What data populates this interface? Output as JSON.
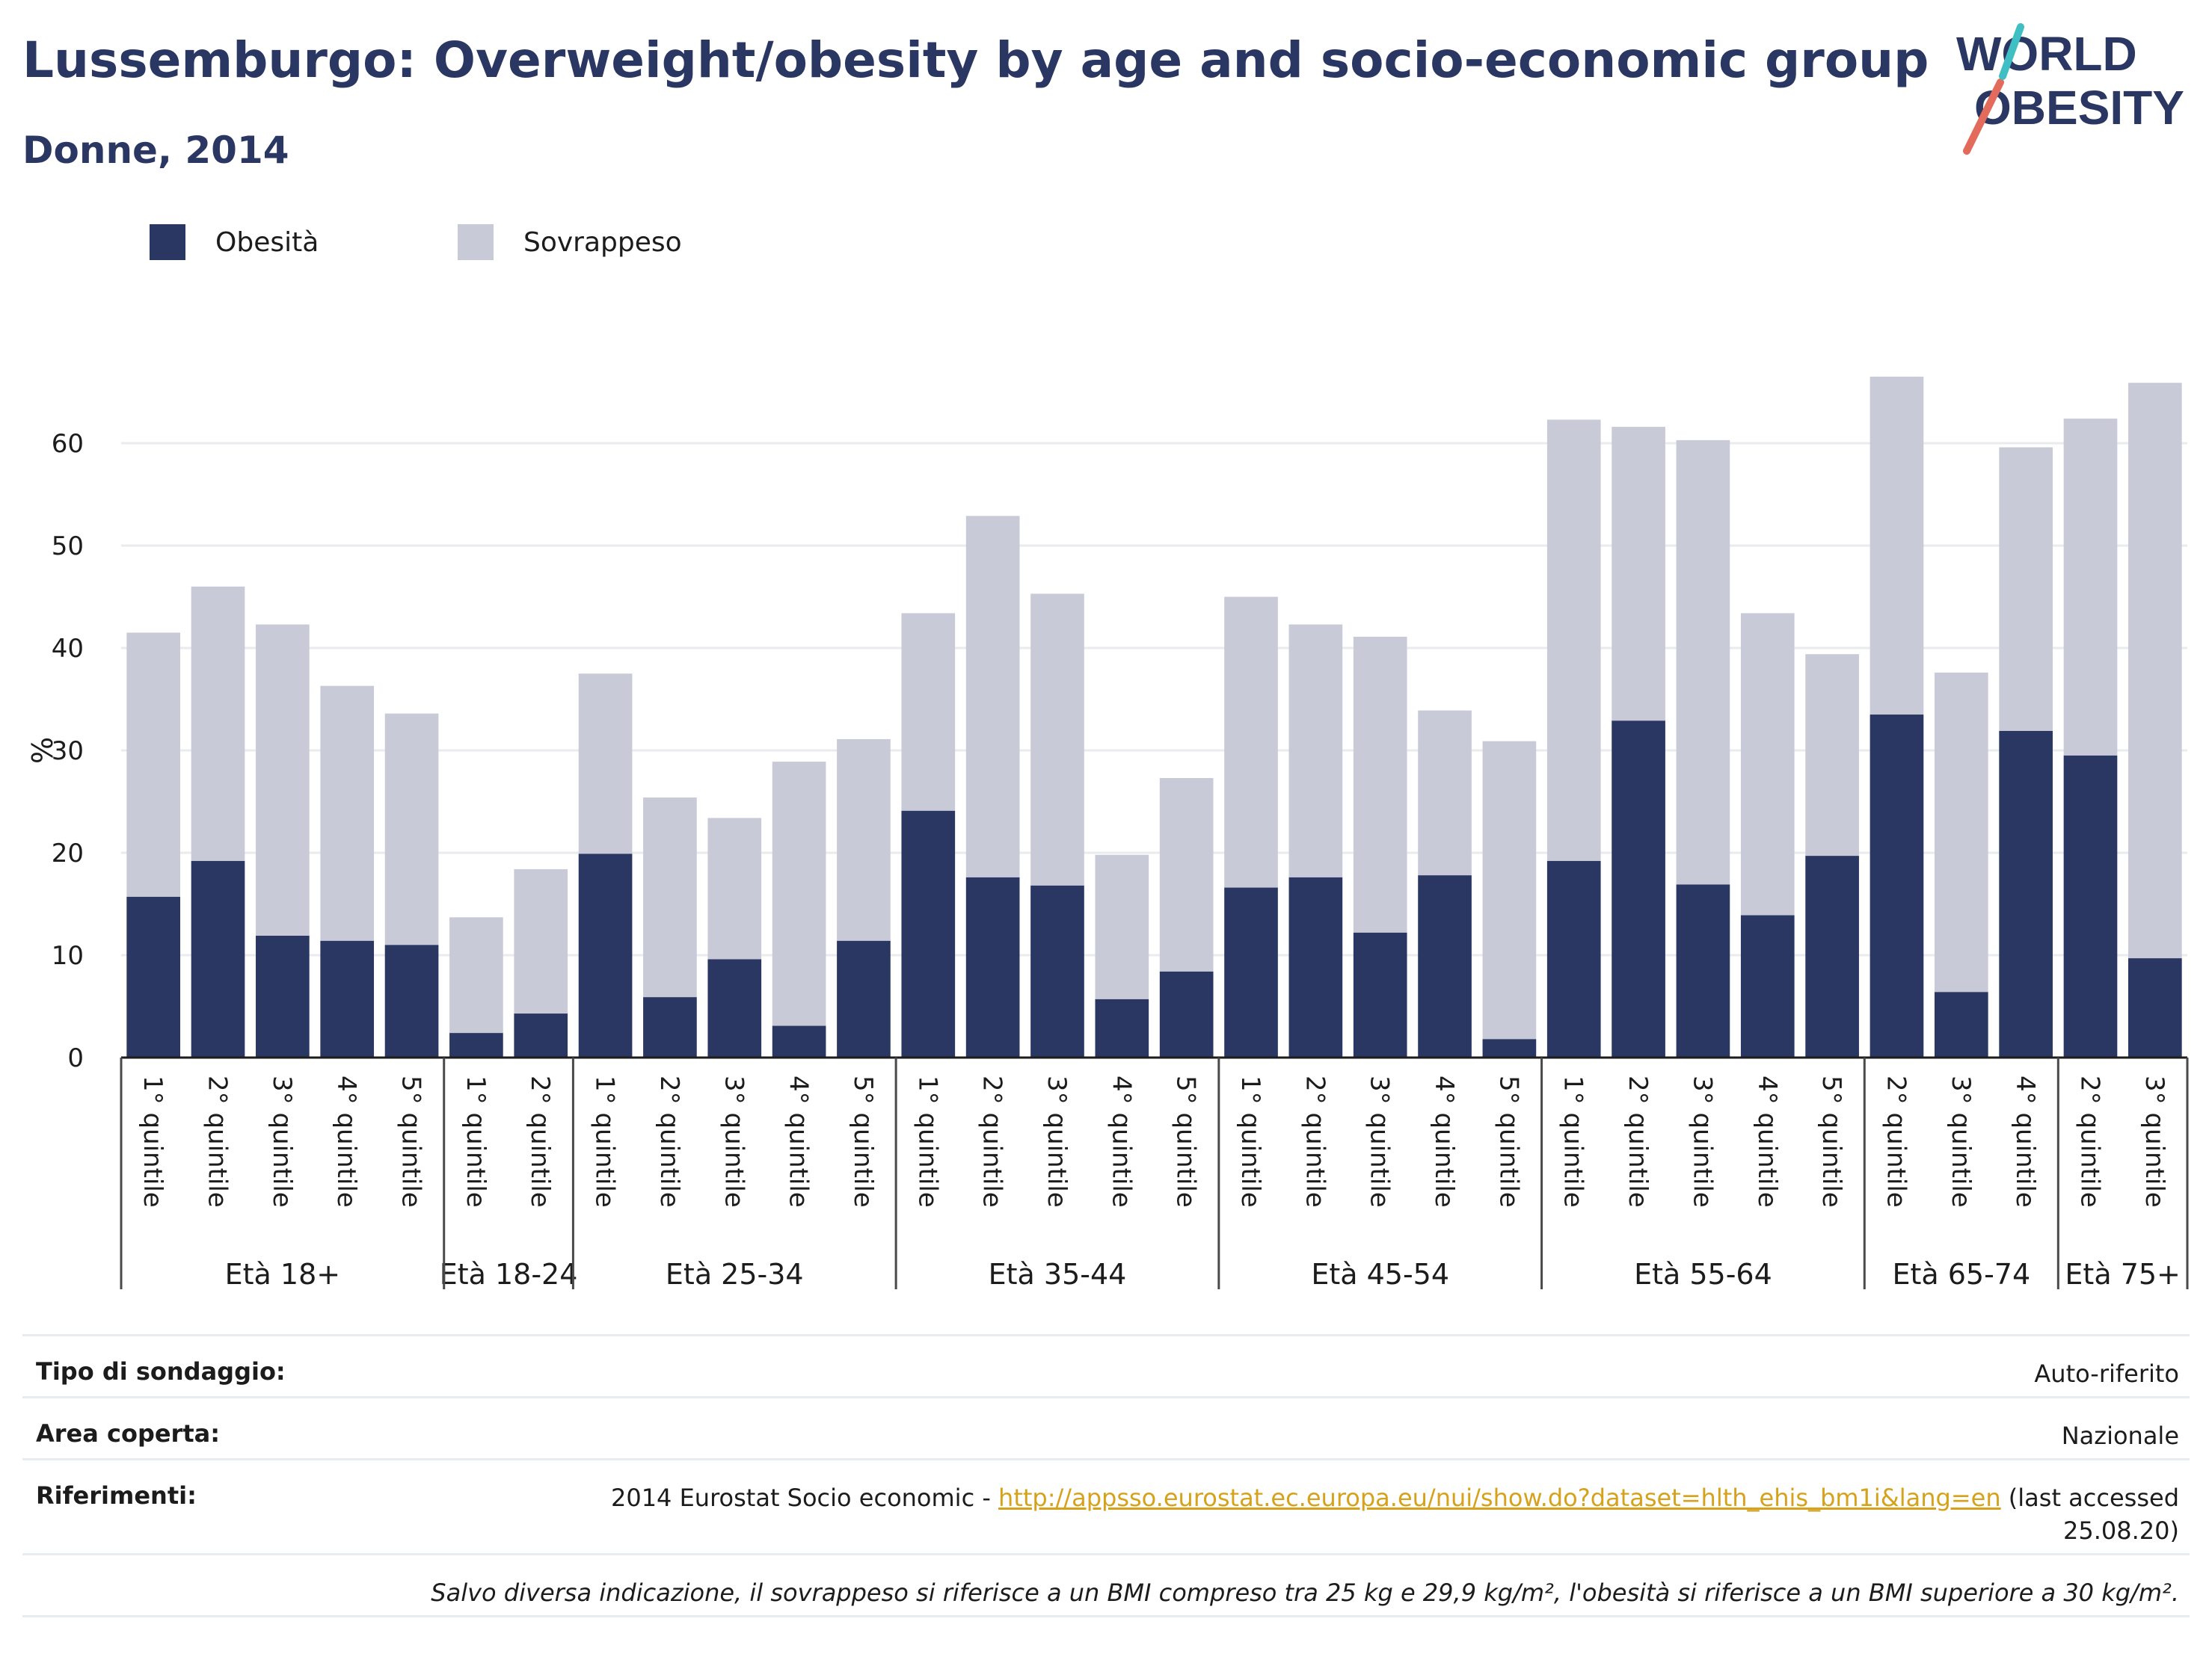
{
  "title": "Lussemburgo: Overweight/obesity by age and socio-economic group",
  "subtitle": "Donne, 2014",
  "logo": {
    "line1": "WORLD",
    "line2": "OBESITY"
  },
  "legend": [
    {
      "label": "Obesità",
      "color": "#2a3763"
    },
    {
      "label": "Sovrappeso",
      "color": "#c9cad7"
    }
  ],
  "chart_data": {
    "type": "bar",
    "stacked": true,
    "ylabel": "%",
    "ylim": [
      0,
      70
    ],
    "yticks": [
      0,
      10,
      20,
      30,
      40,
      50,
      60
    ],
    "grid": true,
    "legend_position": "top-left",
    "groups": [
      {
        "label": "Età 18+",
        "categories": [
          "1° quintile",
          "2° quintile",
          "3° quintile",
          "4° quintile",
          "5° quintile"
        ]
      },
      {
        "label": "Età 18-24",
        "categories": [
          "1° quintile",
          "2° quintile"
        ]
      },
      {
        "label": "Età 25-34",
        "categories": [
          "1° quintile",
          "2° quintile",
          "3° quintile",
          "4° quintile",
          "5° quintile"
        ]
      },
      {
        "label": "Età 35-44",
        "categories": [
          "1° quintile",
          "2° quintile",
          "3° quintile",
          "4° quintile",
          "5° quintile"
        ]
      },
      {
        "label": "Età 45-54",
        "categories": [
          "1° quintile",
          "2° quintile",
          "3° quintile",
          "4° quintile",
          "5° quintile"
        ]
      },
      {
        "label": "Età 55-64",
        "categories": [
          "1° quintile",
          "2° quintile",
          "3° quintile",
          "4° quintile",
          "5° quintile"
        ]
      },
      {
        "label": "Età 65-74",
        "categories": [
          "2° quintile",
          "3° quintile",
          "4° quintile"
        ]
      },
      {
        "label": "Età 75+",
        "categories": [
          "2° quintile",
          "3° quintile"
        ]
      }
    ],
    "series": [
      {
        "name": "Obesità",
        "color": "#2a3763",
        "values": [
          15.7,
          19.2,
          11.9,
          11.4,
          11.0,
          2.4,
          4.3,
          19.9,
          5.9,
          9.6,
          3.1,
          11.4,
          24.1,
          17.6,
          16.8,
          5.7,
          8.4,
          16.6,
          17.6,
          12.2,
          17.8,
          1.8,
          19.2,
          32.9,
          16.9,
          13.9,
          19.7,
          33.5,
          6.4,
          31.9,
          29.5,
          9.7
        ]
      },
      {
        "name": "Sovrappeso",
        "color": "#c9cad7",
        "values": [
          25.8,
          26.8,
          30.4,
          24.9,
          22.6,
          11.3,
          14.1,
          17.6,
          19.5,
          13.8,
          25.8,
          19.7,
          19.3,
          35.3,
          28.5,
          14.1,
          18.9,
          28.4,
          24.7,
          28.9,
          16.1,
          29.1,
          43.1,
          28.7,
          43.4,
          29.5,
          19.7,
          33.0,
          31.2,
          27.7,
          32.9,
          56.2
        ]
      }
    ]
  },
  "info": {
    "survey_label": "Tipo di sondaggio:",
    "survey_value": "Auto-riferito",
    "area_label": "Area coperta:",
    "area_value": "Nazionale",
    "refs_label": "Riferimenti:",
    "refs_prefix": "2014 Eurostat Socio economic - ",
    "refs_link": "http://appsso.eurostat.ec.europa.eu/nui/show.do?dataset=hlth_ehis_bm1i&lang=en",
    "refs_suffix": " (last accessed",
    "refs_date": "25.08.20)",
    "note": "Salvo diversa indicazione, il sovrappeso si riferisce a un BMI compreso tra 25 kg e 29,9 kg/m², l'obesità si riferisce a un BMI superiore a 30 kg/m²."
  }
}
